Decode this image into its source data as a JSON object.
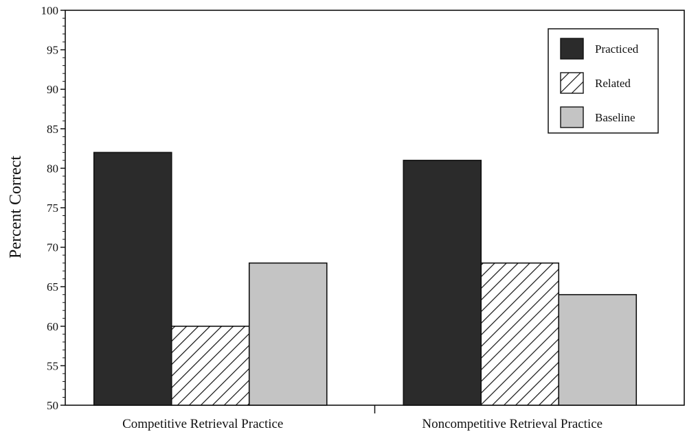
{
  "chart_data": {
    "type": "bar",
    "title": "",
    "xlabel": "",
    "ylabel": "Percent Correct",
    "ylim": [
      50,
      100
    ],
    "yticks": [
      50,
      55,
      60,
      65,
      70,
      75,
      80,
      85,
      90,
      95,
      100
    ],
    "grid": false,
    "legend_position": "top-right",
    "categories": [
      "Competitive Retrieval Practice",
      "Noncompetitive Retrieval Practice"
    ],
    "series": [
      {
        "name": "Practiced",
        "values": [
          82,
          81
        ],
        "fill": "#2b2b2b",
        "pattern": "solid"
      },
      {
        "name": "Related",
        "values": [
          60,
          68
        ],
        "fill": "#ffffff",
        "pattern": "diagonal-hatch"
      },
      {
        "name": "Baseline",
        "values": [
          68,
          64
        ],
        "fill": "#c4c4c4",
        "pattern": "solid"
      }
    ]
  }
}
